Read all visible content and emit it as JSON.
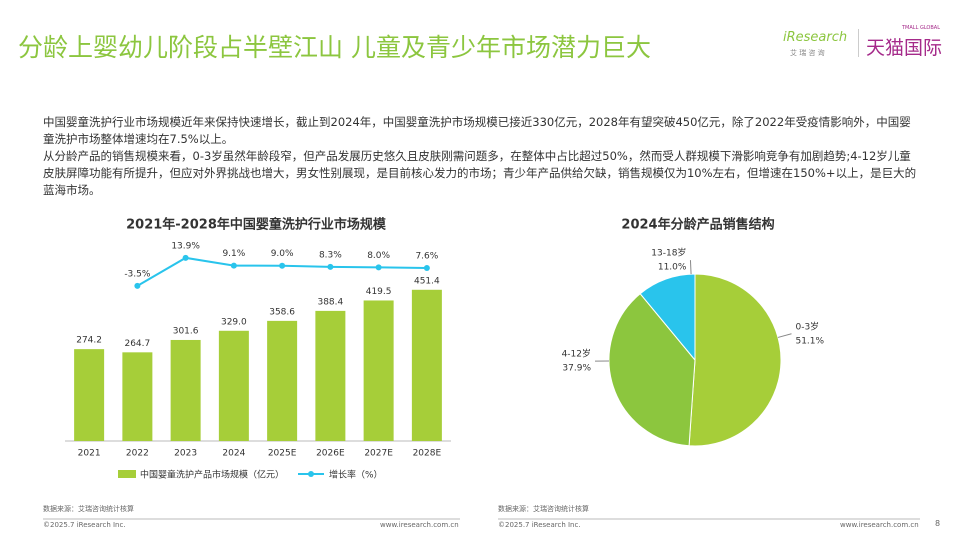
{
  "header": {
    "title": "分龄上婴幼儿阶段占半壁江山 儿童及青少年市场潜力巨大",
    "logo": "iResearch",
    "logo_sub": "艾 瑞 咨 询",
    "brand": "天猫国际",
    "brand_sub": "TMALL GLOBAL"
  },
  "body": {
    "paragraphs": [
      "中国婴童洗护行业市场规模近年来保持快速增长，截止到2024年，中国婴童洗护市场规模已接近330亿元，2028年有望突破450亿元，除了2022年受疫情影响外，中国婴童洗护市场整体增速均在7.5%以上。",
      "从分龄产品的销售规模来看，0-3岁虽然年龄段窄，但产品发展历史悠久且皮肤刚需问题多，在整体中占比超过50%，然而受人群规模下滑影响竞争有加剧趋势;4-12岁儿童皮肤屏障功能有所提升，但应对外界挑战也增大，男女性别展现，是目前核心发力的市场；青少年产品供给欠缺，销售规模仅为10%左右，但增速在150%+以上，是巨大的蓝海市场。"
    ]
  },
  "chart_data": [
    {
      "type": "bar",
      "title": "2021年-2028年中国婴童洗护行业市场规模",
      "categories": [
        "2021",
        "2022",
        "2023",
        "2024",
        "2025E",
        "2026E",
        "2027E",
        "2028E"
      ],
      "series": [
        {
          "name": "中国婴童洗护产品市场规模（亿元）",
          "color": "#a6ce39",
          "type": "bar",
          "values": [
            274.2,
            264.7,
            301.6,
            329,
            358.6,
            388.4,
            419.5,
            451.4
          ],
          "value_labels": [
            "274.2",
            "264.7",
            "301.6",
            "329.0",
            "358.6",
            "388.4",
            "419.5",
            "451.4"
          ]
        },
        {
          "name": "增长率（%）",
          "color": "#29c4ec",
          "type": "line",
          "axis": "y2",
          "values": [
            null,
            -3.5,
            13.9,
            9.1,
            9.0,
            8.3,
            8.0,
            7.6
          ],
          "value_labels": [
            null,
            "-3.5%",
            "13.9%",
            "9.1%",
            "9.0%",
            "8.3%",
            "8.0%",
            "7.6%"
          ]
        }
      ],
      "ylim": [
        0,
        600
      ],
      "y2lim": [
        -100,
        25
      ],
      "legend": "bottom"
    },
    {
      "type": "pie",
      "title": "2024年分龄产品销售结构",
      "categories": [
        "0-3岁",
        "4-12岁",
        "13-18岁"
      ],
      "values": [
        51.1,
        37.9,
        11
      ],
      "value_labels": [
        "51.1%",
        "37.9%",
        "11.0%"
      ],
      "colors": [
        "#a6ce39",
        "#8cc63e",
        "#29c4ec"
      ]
    }
  ],
  "footer": {
    "source": "数据来源：艾瑞咨询统计核算",
    "copyright": "©2025.7 iResearch Inc.",
    "url": "www.iresearch.com.cn",
    "page": "8"
  }
}
